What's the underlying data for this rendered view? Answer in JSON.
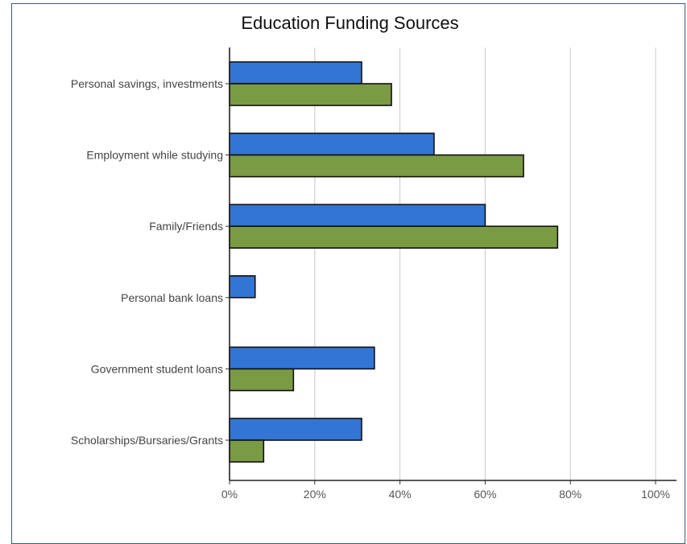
{
  "chart_data": {
    "type": "bar",
    "orientation": "horizontal",
    "title": "Education Funding Sources",
    "categories": [
      "Personal savings, investments",
      "Employment while studying",
      "Family/Friends",
      "Personal bank loans",
      "Government student loans",
      "Scholarships/Bursaries/Grants"
    ],
    "series": [
      {
        "color": "#3375d4",
        "values": [
          31,
          48,
          60,
          6,
          34,
          31
        ]
      },
      {
        "color": "#7a9a44",
        "values": [
          38,
          69,
          77,
          0,
          15,
          8
        ]
      }
    ],
    "xlim": [
      0,
      100
    ],
    "xticks": [
      "0%",
      "20%",
      "40%",
      "60%",
      "80%",
      "100%"
    ],
    "grid": true,
    "legend": "none"
  }
}
